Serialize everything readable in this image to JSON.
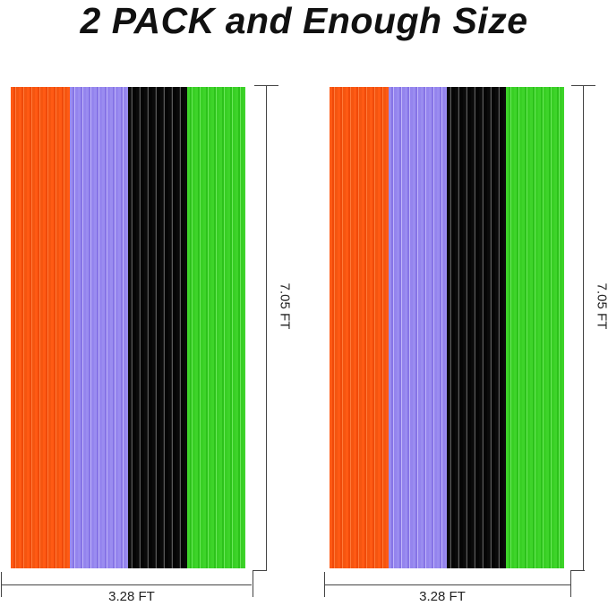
{
  "title": "2 PACK and Enough Size",
  "curtains": [
    {
      "height_label": "7.05 FT",
      "width_label": "3.28 FT",
      "colors": [
        "#ff5a14",
        "#9a8cf0",
        "#0a0a0a",
        "#3ed42a"
      ]
    },
    {
      "height_label": "7.05 FT",
      "width_label": "3.28 FT",
      "colors": [
        "#ff5a14",
        "#9a8cf0",
        "#0a0a0a",
        "#3ed42a"
      ]
    }
  ]
}
